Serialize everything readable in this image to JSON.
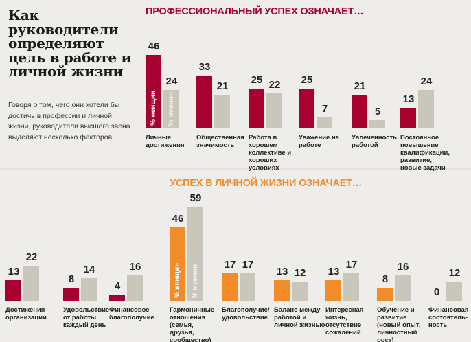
{
  "title": "Как руководители определяют цель в работе и личной жизни",
  "description": "Говоря о том, чего они хотели бы достичь в профессии и личной жизни, руководители высшего звена выделяют несколько факторов.",
  "colors": {
    "women_professional": "#a8002f",
    "women_personal": "#f28c28",
    "men": "#c9c6bb",
    "background": "#efedea"
  },
  "chart_data": [
    {
      "type": "bar",
      "title": "ПРОФЕССИОНАЛЬНЫЙ УСПЕХ ОЗНАЧАЕТ…",
      "legend": [
        "% женщин",
        "% мужчин"
      ],
      "categories": [
        "Личные достижения",
        "Общественная значимость",
        "Работа в хорошем коллективе и хороших условиях",
        "Уважение на работе",
        "Увлеченность работой",
        "Постоянное повышение квалификации, развитие, новые задачи",
        "Достижения организации",
        "Удовольствие от работы каждый день",
        "Финансовое благополучие"
      ],
      "series": [
        {
          "name": "% женщин",
          "values": [
            46,
            33,
            25,
            25,
            21,
            13,
            13,
            8,
            4
          ]
        },
        {
          "name": "% мужчин",
          "values": [
            24,
            21,
            22,
            7,
            5,
            24,
            22,
            14,
            16
          ]
        }
      ],
      "ylim": [
        0,
        60
      ]
    },
    {
      "type": "bar",
      "title": "УСПЕХ В ЛИЧНОЙ ЖИЗНИ ОЗНАЧАЕТ…",
      "legend": [
        "% женщин",
        "% мужчин"
      ],
      "categories": [
        "Гармоничные отношения (семья, друзья, сообщество)",
        "Благополучие/ удовольствие",
        "Баланс между работой и личной жизнью",
        "Интересная жизнь, отсутствие сожалений",
        "Обучение и развитие (новый опыт, личностный рост)",
        "Финансовая состоятель-ность"
      ],
      "series": [
        {
          "name": "% женщин",
          "values": [
            46,
            17,
            13,
            13,
            8,
            0
          ]
        },
        {
          "name": "% мужчин",
          "values": [
            59,
            17,
            12,
            17,
            16,
            12
          ]
        }
      ],
      "ylim": [
        0,
        60
      ]
    }
  ]
}
